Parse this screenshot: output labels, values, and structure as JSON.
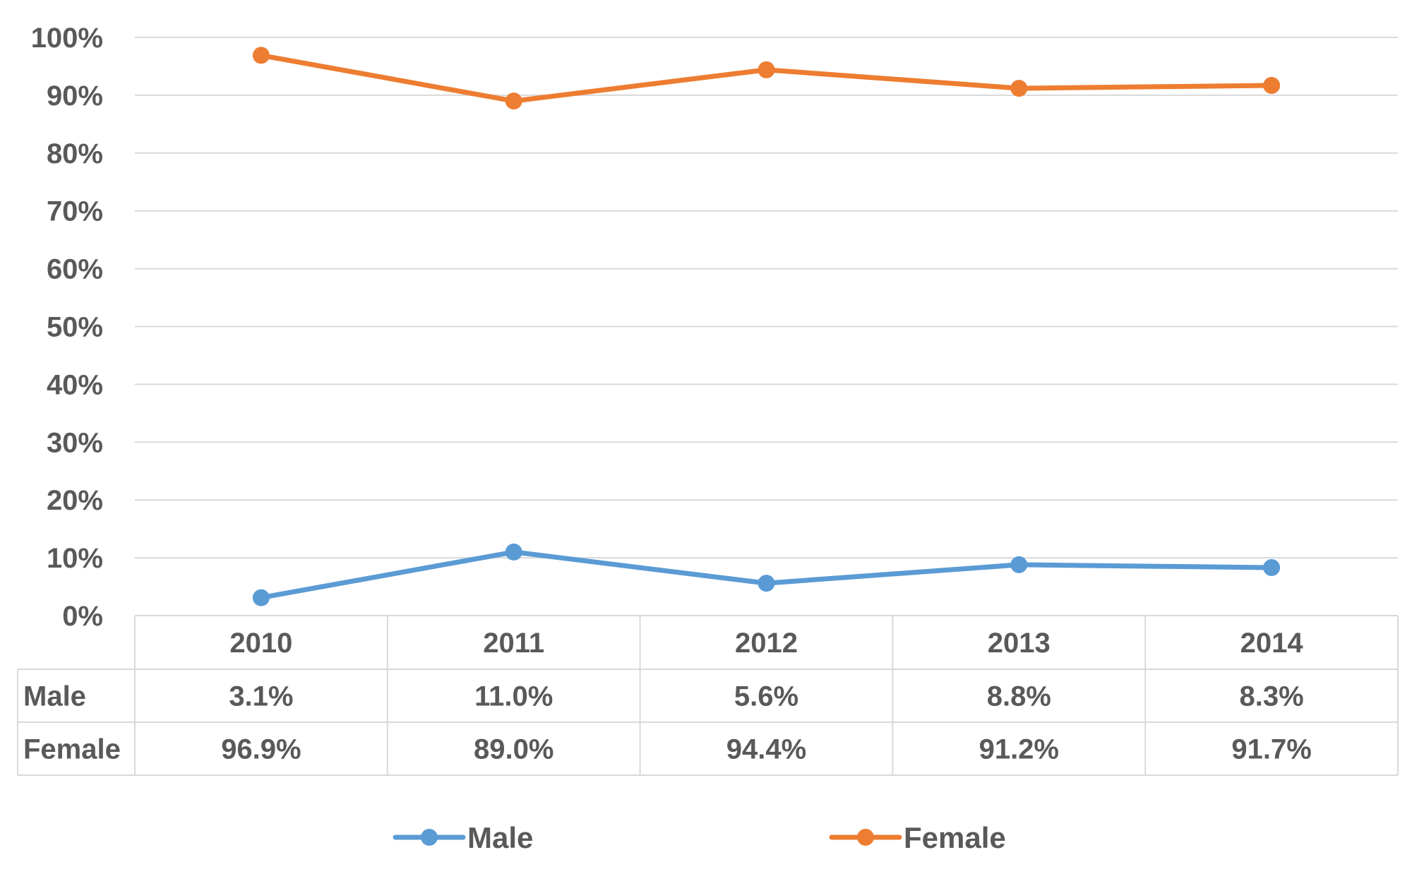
{
  "chart_data": {
    "type": "line",
    "categories": [
      "2010",
      "2011",
      "2012",
      "2013",
      "2014"
    ],
    "series": [
      {
        "name": "Male",
        "values": [
          3.1,
          11.0,
          5.6,
          8.8,
          8.3
        ],
        "labels": [
          "3.1%",
          "11.0%",
          "5.6%",
          "8.8%",
          "8.3%"
        ],
        "color": "#5B9BD5"
      },
      {
        "name": "Female",
        "values": [
          96.9,
          89.0,
          94.4,
          91.2,
          91.7
        ],
        "labels": [
          "96.9%",
          "89.0%",
          "94.4%",
          "91.2%",
          "91.7%"
        ],
        "color": "#ED7D31"
      }
    ],
    "ylim": [
      0,
      100
    ],
    "yticks": [
      0,
      10,
      20,
      30,
      40,
      50,
      60,
      70,
      80,
      90,
      100
    ],
    "ytick_labels": [
      "0%",
      "10%",
      "20%",
      "30%",
      "40%",
      "50%",
      "60%",
      "70%",
      "80%",
      "90%",
      "100%"
    ],
    "grid": true,
    "data_table": true,
    "legend_position": "bottom",
    "title": "",
    "xlabel": "",
    "ylabel": ""
  }
}
